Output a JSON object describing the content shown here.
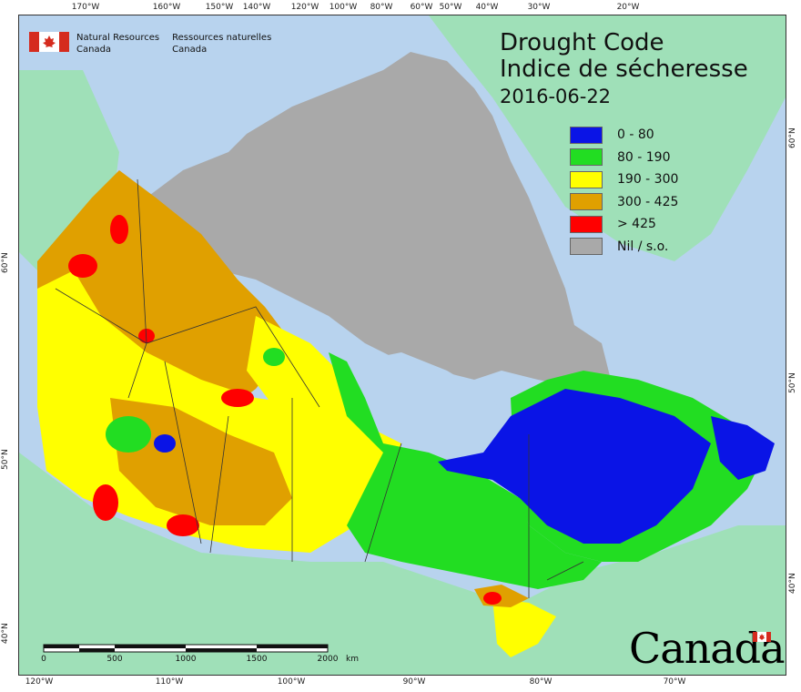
{
  "header": {
    "agency_en_line1": "Natural Resources",
    "agency_en_line2": "Canada",
    "agency_fr_line1": "Ressources naturelles",
    "agency_fr_line2": "Canada"
  },
  "title": {
    "en": "Drought Code",
    "fr": "Indice de sécheresse",
    "date": "2016-06-22"
  },
  "legend": [
    {
      "label": "0 - 80",
      "color": "#0a14e6"
    },
    {
      "label": "80 - 190",
      "color": "#22dd22"
    },
    {
      "label": "190 - 300",
      "color": "#ffff00"
    },
    {
      "label": "300 - 425",
      "color": "#e0a000"
    },
    {
      "label": "> 425",
      "color": "#ff0000"
    },
    {
      "label": "Nil / s.o.",
      "color": "#a9a9a9"
    }
  ],
  "axis": {
    "top": [
      "170°W",
      "160°W",
      "150°W",
      "140°W",
      "120°W",
      "100°W",
      "80°W",
      "60°W",
      "50°W",
      "40°W",
      "30°W",
      "20°W"
    ],
    "bottom": [
      "120°W",
      "110°W",
      "100°W",
      "90°W",
      "80°W",
      "70°W"
    ],
    "left": [
      "60°N",
      "50°N",
      "40°N"
    ],
    "right": [
      "60°N",
      "50°N",
      "40°N"
    ]
  },
  "scale": {
    "labels": [
      "0",
      "500",
      "1000",
      "1500",
      "2000"
    ],
    "unit": "km"
  },
  "wordmark": "Canada",
  "colors": {
    "ocean": "#b8d3ee",
    "foreign_land": "#9fe0b8",
    "no_data": "#a9a9a9",
    "boundary": "#333333"
  }
}
